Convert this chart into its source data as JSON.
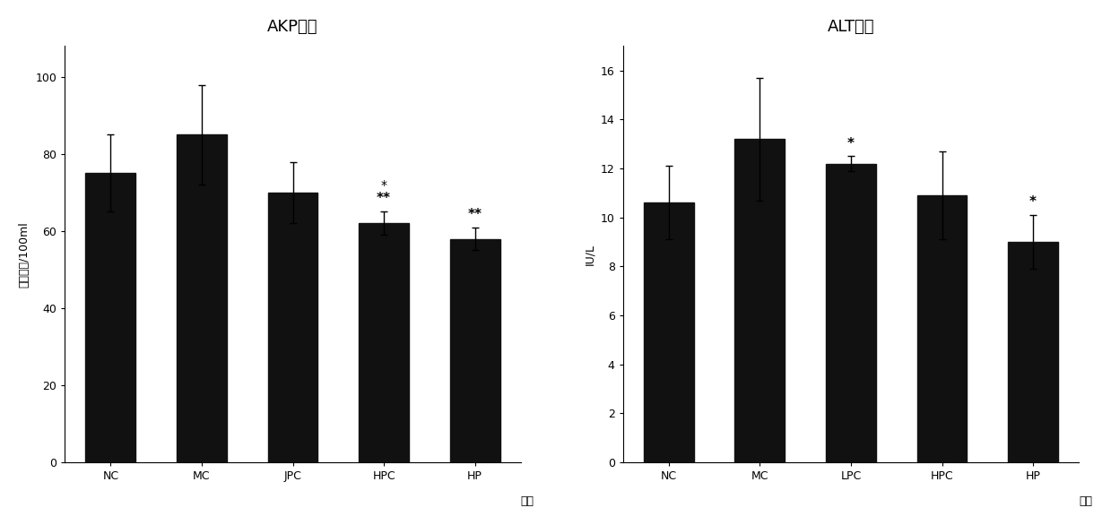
{
  "akp": {
    "title": "AKP活力",
    "categories": [
      "NC",
      "MC",
      "JPC",
      "HPC",
      "HP"
    ],
    "values": [
      75,
      85,
      70,
      62,
      58
    ],
    "errors": [
      10,
      13,
      8,
      3,
      3
    ],
    "ann_above": [
      "",
      "",
      "",
      "**",
      "**"
    ],
    "ann_below": [
      "",
      "",
      "",
      "*",
      ""
    ],
    "ylabel": "金氏单位/100ml",
    "xlabel": "组别",
    "ylim": [
      0,
      108
    ],
    "yticks": [
      0,
      20,
      40,
      60,
      80,
      100
    ]
  },
  "alt": {
    "title": "ALT活力",
    "categories": [
      "NC",
      "MC",
      "LPC",
      "HPC",
      "HP"
    ],
    "values": [
      10.6,
      13.2,
      12.2,
      10.9,
      9.0
    ],
    "errors": [
      1.5,
      2.5,
      0.3,
      1.8,
      1.1
    ],
    "ann_above": [
      "",
      "",
      "*",
      "",
      "*"
    ],
    "ann_below": [
      "",
      "",
      "",
      "",
      ""
    ],
    "ylabel": "IU/L",
    "xlabel": "组别",
    "ylim": [
      0,
      17
    ],
    "yticks": [
      0,
      2,
      4,
      6,
      8,
      10,
      12,
      14,
      16
    ]
  },
  "bar_color": "#111111",
  "bar_width": 0.55,
  "title_fontsize": 13,
  "label_fontsize": 9,
  "tick_fontsize": 9,
  "annot_fontsize": 11,
  "background_color": "#ffffff"
}
